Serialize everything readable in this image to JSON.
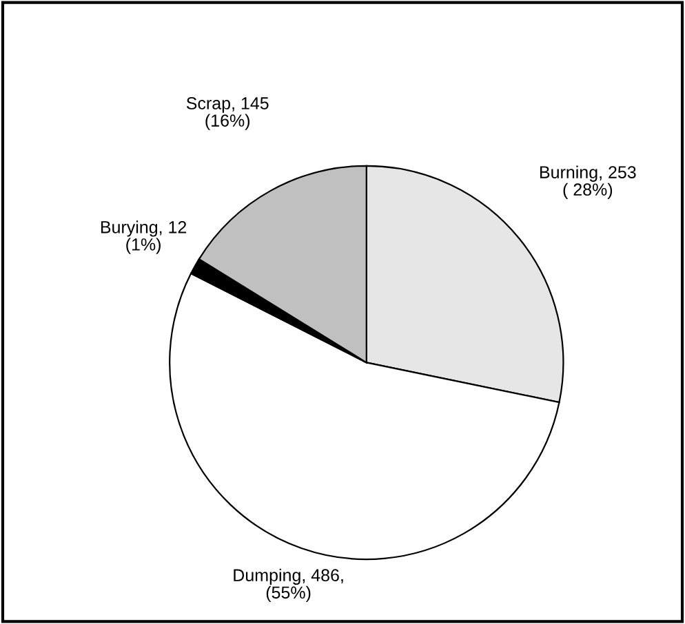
{
  "chart_data": {
    "type": "pie",
    "categories": [
      "Burning",
      "Dumping",
      "Burying",
      "Scrap"
    ],
    "values": [
      253,
      486,
      12,
      145
    ],
    "colors": [
      "#e6e6e6",
      "#ffffff",
      "#000000",
      "#c0c0c0"
    ],
    "value_labels": [
      "253\n( 28%)",
      "486,\n(55%)",
      "12\n(1%)",
      "145\n(16%)"
    ],
    "legend": false
  }
}
